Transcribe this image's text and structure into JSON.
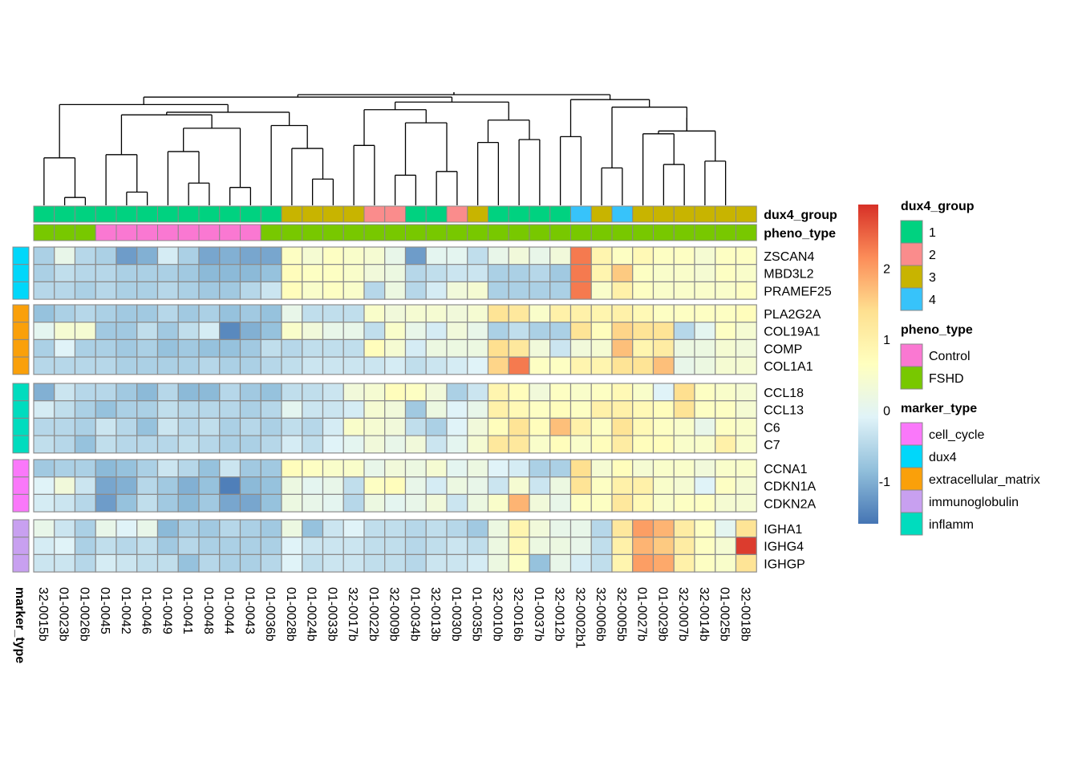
{
  "chart_data": {
    "type": "heatmap",
    "samples": [
      "32-0015b",
      "01-0023b",
      "01-0026b",
      "01-0045",
      "01-0042",
      "01-0046",
      "01-0049",
      "01-0041",
      "01-0048",
      "01-0044",
      "01-0043",
      "01-0036b",
      "01-0028b",
      "01-0024b",
      "01-0033b",
      "32-0017b",
      "01-0022b",
      "32-0009b",
      "01-0034b",
      "32-0013b",
      "01-0030b",
      "01-0035b",
      "32-0010b",
      "32-0016b",
      "01-0037b",
      "32-0012b",
      "32-0002b1",
      "32-0006b",
      "32-0005b",
      "01-0027b",
      "01-0029b",
      "32-0007b",
      "32-0014b",
      "01-0025b",
      "32-0018b"
    ],
    "dux4_group": [
      "1",
      "1",
      "1",
      "1",
      "1",
      "1",
      "1",
      "1",
      "1",
      "1",
      "1",
      "1",
      "3",
      "3",
      "3",
      "3",
      "2",
      "2",
      "1",
      "1",
      "2",
      "3",
      "1",
      "1",
      "1",
      "1",
      "4",
      "3",
      "4",
      "3",
      "3",
      "3",
      "3",
      "3",
      "3"
    ],
    "pheno_type": [
      "FSHD",
      "FSHD",
      "FSHD",
      "Control",
      "Control",
      "Control",
      "Control",
      "Control",
      "Control",
      "Control",
      "Control",
      "FSHD",
      "FSHD",
      "FSHD",
      "FSHD",
      "FSHD",
      "FSHD",
      "FSHD",
      "FSHD",
      "FSHD",
      "FSHD",
      "FSHD",
      "FSHD",
      "FSHD",
      "FSHD",
      "FSHD",
      "FSHD",
      "FSHD",
      "FSHD",
      "FSHD",
      "FSHD",
      "FSHD",
      "FSHD",
      "FSHD",
      "FSHD"
    ],
    "row_blocks": [
      {
        "marker_type": "dux4",
        "genes": [
          {
            "name": "ZSCAN4",
            "values": [
              -0.6,
              0.1,
              -0.5,
              -0.6,
              -1.2,
              -1.0,
              -0.2,
              -0.6,
              -1.1,
              -1.0,
              -1.1,
              -1.1,
              0.6,
              0.4,
              0.6,
              0.5,
              0.4,
              0.1,
              -1.2,
              0.0,
              0.0,
              -0.4,
              0.1,
              0.3,
              0.1,
              0.3,
              2.3,
              0.9,
              0.6,
              0.8,
              0.6,
              0.6,
              0.4,
              0.6,
              0.6
            ]
          },
          {
            "name": "MBD3L2",
            "values": [
              -0.6,
              -0.4,
              -0.5,
              -0.5,
              -0.6,
              -0.6,
              -0.6,
              -0.7,
              -0.9,
              -0.9,
              -0.9,
              -0.8,
              0.7,
              0.6,
              0.6,
              0.5,
              0.3,
              0.2,
              -0.5,
              -0.4,
              -0.3,
              -0.3,
              -0.6,
              -0.6,
              -0.5,
              -0.7,
              2.3,
              0.9,
              1.6,
              0.6,
              0.5,
              0.5,
              0.4,
              0.6,
              0.5
            ]
          },
          {
            "name": "PRAMEF25",
            "values": [
              -0.5,
              -0.5,
              -0.6,
              -0.5,
              -0.6,
              -0.6,
              -0.5,
              -0.6,
              -0.7,
              -0.7,
              -0.5,
              -0.3,
              0.7,
              0.5,
              0.6,
              0.5,
              -0.5,
              0.2,
              -0.5,
              -0.2,
              0.3,
              0.4,
              -0.6,
              -0.6,
              -0.6,
              -0.6,
              2.3,
              0.5,
              1.0,
              0.6,
              0.5,
              0.5,
              0.5,
              0.5,
              0.6
            ]
          }
        ]
      },
      {
        "marker_type": "extracellular_matrix",
        "genes": [
          {
            "name": "PLA2G2A",
            "values": [
              -0.8,
              -0.6,
              -0.5,
              -0.6,
              -0.7,
              -0.7,
              -0.5,
              -0.7,
              -0.6,
              -0.8,
              -0.7,
              -0.8,
              0.1,
              -0.4,
              -0.4,
              -0.4,
              0.5,
              0.3,
              0.4,
              0.4,
              0.3,
              0.4,
              1.3,
              1.2,
              0.5,
              1.0,
              1.0,
              0.9,
              1.0,
              0.8,
              0.6,
              0.6,
              0.6,
              0.6,
              0.7
            ]
          },
          {
            "name": "COL19A1",
            "values": [
              0.0,
              0.4,
              0.4,
              -0.7,
              -0.7,
              -0.4,
              -0.7,
              -0.4,
              -0.2,
              -1.4,
              -1.0,
              -0.8,
              0.5,
              0.3,
              0.1,
              0.1,
              -0.4,
              0.5,
              0.1,
              -0.2,
              0.3,
              0.1,
              -0.6,
              -0.4,
              -0.6,
              -0.6,
              1.3,
              0.7,
              1.5,
              1.3,
              1.3,
              -0.5,
              0.0,
              0.6,
              0.4
            ]
          },
          {
            "name": "COMP",
            "values": [
              -0.6,
              -0.1,
              -0.6,
              -0.6,
              -0.7,
              -0.6,
              -0.8,
              -0.7,
              -0.8,
              -0.8,
              -0.7,
              -0.4,
              -0.5,
              -0.4,
              -0.4,
              -0.4,
              0.7,
              0.4,
              -0.2,
              0.2,
              0.2,
              0.2,
              1.4,
              1.2,
              0.3,
              -0.3,
              0.3,
              0.4,
              1.7,
              0.9,
              1.1,
              0.2,
              0.2,
              0.4,
              0.3
            ]
          },
          {
            "name": "COL1A1",
            "values": [
              -0.5,
              -0.5,
              -0.5,
              -0.5,
              -0.6,
              -0.6,
              -0.6,
              -0.6,
              -0.5,
              -0.6,
              -0.6,
              -0.5,
              -0.4,
              -0.3,
              -0.3,
              -0.3,
              -0.3,
              -0.2,
              -0.4,
              -0.3,
              -0.2,
              -0.1,
              1.5,
              2.3,
              0.6,
              0.6,
              0.9,
              0.9,
              1.3,
              1.3,
              1.7,
              0.1,
              0.2,
              0.4,
              0.4
            ]
          }
        ]
      },
      {
        "marker_type": "inflamm",
        "genes": [
          {
            "name": "CCL18",
            "values": [
              -1.0,
              -0.3,
              -0.5,
              -0.5,
              -0.7,
              -0.9,
              -0.5,
              -0.9,
              -0.9,
              -0.5,
              -0.7,
              -0.8,
              -0.4,
              -0.4,
              -0.3,
              0.3,
              0.4,
              0.7,
              0.6,
              0.3,
              -0.6,
              -0.3,
              0.9,
              0.7,
              0.3,
              0.6,
              0.5,
              0.6,
              0.8,
              0.5,
              -0.1,
              1.4,
              0.6,
              0.5,
              0.4
            ]
          },
          {
            "name": "CCL13",
            "values": [
              -0.2,
              -0.4,
              -0.6,
              -0.8,
              -0.6,
              -0.6,
              -0.4,
              -0.5,
              -0.5,
              -0.5,
              -0.6,
              -0.5,
              0.0,
              -0.3,
              -0.3,
              -0.2,
              0.4,
              0.3,
              -0.7,
              0.2,
              -0.1,
              0.1,
              1.0,
              0.8,
              0.6,
              0.7,
              0.6,
              1.0,
              1.0,
              0.8,
              0.7,
              1.3,
              0.6,
              0.6,
              0.4
            ]
          },
          {
            "name": "C6",
            "values": [
              -0.5,
              -0.5,
              -0.6,
              -0.3,
              -0.5,
              -0.8,
              -0.3,
              -0.5,
              -0.4,
              -0.6,
              -0.5,
              -0.6,
              -0.4,
              -0.5,
              -0.2,
              0.5,
              0.4,
              0.3,
              -0.4,
              -0.6,
              -0.1,
              0.3,
              0.7,
              1.3,
              0.7,
              1.7,
              1.0,
              0.6,
              1.3,
              0.8,
              0.6,
              0.5,
              0.1,
              0.6,
              0.5
            ]
          },
          {
            "name": "C7",
            "values": [
              -0.4,
              -0.5,
              -0.8,
              -0.4,
              -0.5,
              -0.5,
              -0.5,
              -0.4,
              -0.5,
              -0.6,
              -0.6,
              -0.5,
              -0.2,
              -0.4,
              -0.1,
              0.0,
              0.3,
              0.1,
              0.3,
              -0.3,
              0.0,
              0.4,
              1.2,
              1.2,
              0.5,
              0.7,
              0.5,
              0.7,
              1.1,
              0.7,
              0.7,
              0.5,
              0.5,
              1.0,
              0.5
            ]
          }
        ]
      },
      {
        "marker_type": "cell_cycle",
        "genes": [
          {
            "name": "CCNA1",
            "values": [
              -0.7,
              -0.6,
              -0.6,
              -0.9,
              -0.8,
              -0.6,
              -0.3,
              -0.5,
              -0.8,
              -0.3,
              -0.7,
              -0.7,
              0.7,
              0.6,
              0.5,
              0.5,
              0.1,
              0.3,
              0.2,
              0.4,
              0.0,
              0.2,
              -0.1,
              -0.2,
              -0.6,
              -0.6,
              1.4,
              0.4,
              0.7,
              0.4,
              0.5,
              0.5,
              0.3,
              0.5,
              0.5
            ]
          },
          {
            "name": "CDKN1A",
            "values": [
              -0.1,
              0.3,
              -0.3,
              -1.1,
              -1.0,
              -0.5,
              -0.7,
              -1.0,
              -0.8,
              -1.5,
              -0.9,
              -0.8,
              0.2,
              0.0,
              0.1,
              -0.4,
              0.6,
              0.7,
              0.1,
              -0.2,
              0.2,
              0.1,
              -0.3,
              0.4,
              -0.3,
              0.2,
              1.3,
              0.6,
              1.0,
              1.0,
              0.5,
              0.4,
              -0.1,
              0.6,
              0.4
            ]
          },
          {
            "name": "CDKN2A",
            "values": [
              -0.2,
              -0.3,
              -0.5,
              -1.2,
              -0.8,
              -0.4,
              -0.7,
              -0.9,
              -0.7,
              -1.1,
              -1.1,
              -0.8,
              0.2,
              0.1,
              0.0,
              -0.5,
              0.2,
              0.0,
              0.1,
              0.3,
              -0.3,
              0.2,
              0.5,
              1.8,
              0.3,
              0.1,
              0.6,
              0.6,
              1.2,
              0.8,
              0.5,
              0.6,
              0.6,
              0.4,
              0.4
            ]
          }
        ]
      },
      {
        "marker_type": "immunoglobulin",
        "genes": [
          {
            "name": "IGHA1",
            "values": [
              0.1,
              -0.3,
              -0.6,
              0.1,
              -0.1,
              0.1,
              -0.9,
              -0.6,
              -0.7,
              -0.5,
              -0.6,
              -0.7,
              0.2,
              -0.8,
              -0.3,
              -0.1,
              -0.4,
              -0.4,
              -0.5,
              -0.4,
              -0.5,
              -0.7,
              0.2,
              0.9,
              0.3,
              0.1,
              0.1,
              -0.5,
              1.2,
              2.0,
              1.8,
              1.1,
              0.6,
              0.0,
              1.3
            ]
          },
          {
            "name": "IGHG4",
            "values": [
              -0.2,
              -0.1,
              -0.6,
              -0.4,
              -0.5,
              -0.4,
              -0.7,
              -0.5,
              -0.6,
              -0.6,
              -0.6,
              -0.6,
              -0.1,
              -0.3,
              -0.3,
              -0.3,
              -0.4,
              -0.4,
              -0.5,
              -0.4,
              -0.3,
              -0.4,
              0.2,
              0.8,
              0.2,
              0.2,
              0.1,
              -0.4,
              1.0,
              1.8,
              1.6,
              1.1,
              0.6,
              0.4,
              2.8
            ]
          },
          {
            "name": "IGHGP",
            "values": [
              -0.3,
              -0.3,
              -0.5,
              -0.2,
              -0.3,
              -0.4,
              -0.4,
              -0.8,
              -0.5,
              -0.6,
              -0.6,
              -0.5,
              -0.1,
              -0.4,
              -0.3,
              -0.3,
              -0.4,
              -0.4,
              -0.5,
              -0.3,
              -0.3,
              -0.2,
              0.2,
              0.6,
              -0.8,
              0.1,
              -0.2,
              -0.4,
              0.9,
              2.0,
              1.9,
              1.0,
              0.6,
              0.5,
              1.3
            ]
          }
        ]
      }
    ],
    "color_scale": {
      "min": -1.6,
      "max": 2.9,
      "colors": [
        "#4575b4",
        "#91bfdb",
        "#e0f3f8",
        "#ffffbf",
        "#fee090",
        "#fc8d59",
        "#d73027"
      ],
      "ticks": [
        {
          "value": 2,
          "label": "2"
        },
        {
          "value": 1,
          "label": "1"
        },
        {
          "value": 0,
          "label": "0"
        },
        {
          "value": -1,
          "label": "-1"
        }
      ]
    },
    "annotation_labels": {
      "dux4_group": "dux4_group",
      "pheno_type": "pheno_type",
      "marker_type": "marker_type"
    },
    "legends": [
      {
        "title": "dux4_group",
        "items": [
          {
            "label": "1",
            "color": "#00d280"
          },
          {
            "label": "2",
            "color": "#fa8c8c"
          },
          {
            "label": "3",
            "color": "#c8b400"
          },
          {
            "label": "4",
            "color": "#37c3fa"
          }
        ]
      },
      {
        "title": "pheno_type",
        "items": [
          {
            "label": "Control",
            "color": "#fa78d2"
          },
          {
            "label": "FSHD",
            "color": "#78c800"
          }
        ]
      },
      {
        "title": "marker_type",
        "items": [
          {
            "label": "cell_cycle",
            "color": "#fa78fa"
          },
          {
            "label": "dux4",
            "color": "#00d7fa"
          },
          {
            "label": "extracellular_matrix",
            "color": "#faa00a"
          },
          {
            "label": "immunoglobulin",
            "color": "#c8a0f0"
          },
          {
            "label": "inflamm",
            "color": "#00dcbe"
          }
        ]
      }
    ],
    "dendrogram_merges": [
      [
        1,
        2
      ],
      [
        4,
        5
      ],
      [
        9,
        10
      ],
      [
        7,
        8
      ],
      [
        13,
        14
      ],
      [
        17,
        18
      ],
      [
        19,
        20
      ],
      [
        27,
        28
      ],
      [
        30,
        31
      ],
      [
        32,
        33
      ],
      [
        0,
        1
      ],
      [
        3,
        4
      ],
      [
        6,
        7
      ],
      [
        12,
        13
      ],
      [
        15,
        16
      ],
      [
        21,
        22
      ],
      [
        23,
        24
      ],
      [
        25,
        26
      ],
      [
        29,
        30
      ],
      [
        31,
        32
      ],
      [
        8,
        10
      ],
      [
        11,
        12
      ],
      [
        17,
        19
      ],
      [
        22,
        24
      ],
      [
        29,
        31
      ],
      [
        3,
        6
      ],
      [
        6,
        11
      ],
      [
        15,
        17
      ],
      [
        28,
        29
      ],
      [
        0,
        3
      ],
      [
        15,
        21
      ],
      [
        25,
        28
      ],
      [
        12,
        15
      ],
      [
        22,
        25
      ],
      [
        0,
        12
      ]
    ]
  }
}
